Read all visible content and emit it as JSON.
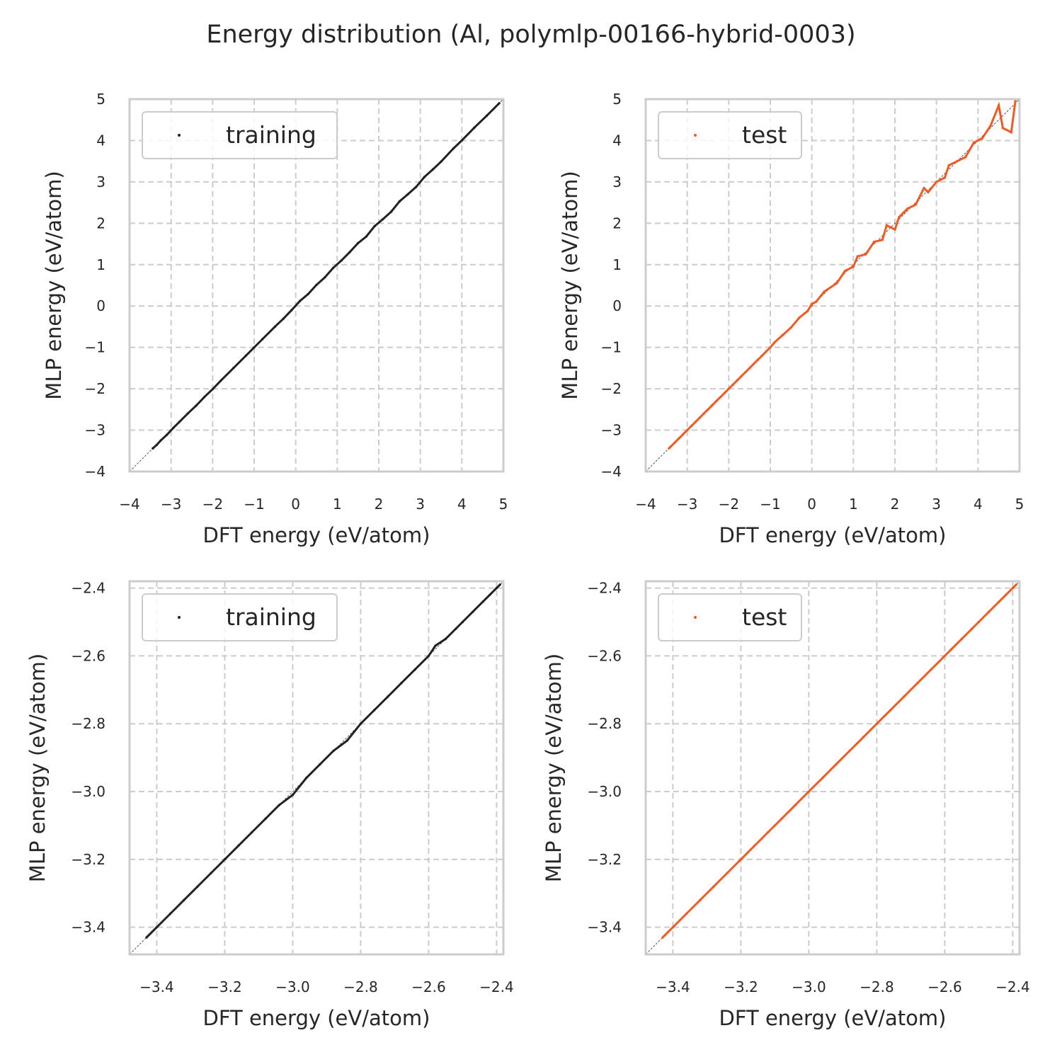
{
  "figure": {
    "title": "Energy distribution (Al, polymlp-00166-hybrid-0003)"
  },
  "colors": {
    "training": "#222222",
    "test": "#f15a22",
    "grid": "#cccccc",
    "frame": "#cccccc",
    "diagonal": "#555555"
  },
  "chart_data": [
    {
      "type": "scatter",
      "panel": "top-left",
      "xlabel": "DFT energy (eV/atom)",
      "ylabel": "MLP energy (eV/atom)",
      "xlim": [
        -4,
        5
      ],
      "ylim": [
        -4,
        5
      ],
      "xticks": [
        -4,
        -3,
        -2,
        -1,
        0,
        1,
        2,
        3,
        4,
        5
      ],
      "yticks": [
        -4,
        -3,
        -2,
        -1,
        0,
        1,
        2,
        3,
        4,
        5
      ],
      "xtick_labels": [
        "−4",
        "−3",
        "−2",
        "−1",
        "0",
        "1",
        "2",
        "3",
        "4",
        "5"
      ],
      "ytick_labels": [
        "−4",
        "−3",
        "−2",
        "−1",
        "0",
        "1",
        "2",
        "3",
        "4",
        "5"
      ],
      "grid": true,
      "legend_position": "upper-left",
      "diagonal": true,
      "series": [
        {
          "name": "training",
          "color": "#222222",
          "x": [
            -3.44,
            -3.35,
            -3.25,
            -3.1,
            -2.95,
            -2.8,
            -2.6,
            -2.4,
            -2.2,
            -2.0,
            -1.8,
            -1.5,
            -1.2,
            -1.0,
            -0.8,
            -0.5,
            -0.3,
            -0.1,
            0.1,
            0.3,
            0.5,
            0.7,
            0.9,
            1.1,
            1.3,
            1.5,
            1.7,
            1.9,
            2.1,
            2.3,
            2.5,
            2.7,
            2.9,
            3.1,
            3.3,
            3.5,
            3.8,
            4.0,
            4.3,
            4.6,
            4.9
          ],
          "y": [
            -3.44,
            -3.36,
            -3.25,
            -3.11,
            -2.95,
            -2.8,
            -2.6,
            -2.41,
            -2.2,
            -2.01,
            -1.8,
            -1.5,
            -1.2,
            -1.0,
            -0.8,
            -0.5,
            -0.31,
            -0.1,
            0.12,
            0.29,
            0.51,
            0.69,
            0.92,
            1.1,
            1.3,
            1.52,
            1.68,
            1.93,
            2.1,
            2.28,
            2.53,
            2.7,
            2.88,
            3.12,
            3.3,
            3.49,
            3.81,
            4.0,
            4.31,
            4.6,
            4.9
          ]
        }
      ]
    },
    {
      "type": "scatter",
      "panel": "top-right",
      "xlabel": "DFT energy (eV/atom)",
      "ylabel": "MLP energy (eV/atom)",
      "xlim": [
        -4,
        5
      ],
      "ylim": [
        -4,
        5
      ],
      "xticks": [
        -4,
        -3,
        -2,
        -1,
        0,
        1,
        2,
        3,
        4,
        5
      ],
      "yticks": [
        -4,
        -3,
        -2,
        -1,
        0,
        1,
        2,
        3,
        4,
        5
      ],
      "xtick_labels": [
        "−4",
        "−3",
        "−2",
        "−1",
        "0",
        "1",
        "2",
        "3",
        "4",
        "5"
      ],
      "ytick_labels": [
        "−4",
        "−3",
        "−2",
        "−1",
        "0",
        "1",
        "2",
        "3",
        "4",
        "5"
      ],
      "grid": true,
      "legend_position": "upper-left",
      "diagonal": true,
      "series": [
        {
          "name": "test",
          "color": "#f15a22",
          "x": [
            -3.44,
            -3.4,
            -3.3,
            -3.2,
            -3.1,
            -3.0,
            -2.9,
            -2.8,
            -2.7,
            -2.6,
            -2.5,
            -2.4,
            -2.3,
            -2.2,
            -2.1,
            -2.0,
            -1.9,
            -1.8,
            -1.7,
            -1.5,
            -1.4,
            -1.3,
            -1.2,
            -1.1,
            -1.0,
            -0.9,
            -0.7,
            -0.5,
            -0.3,
            -0.1,
            0.0,
            0.1,
            0.3,
            0.6,
            0.8,
            1.0,
            1.1,
            1.3,
            1.5,
            1.7,
            1.8,
            2.0,
            2.1,
            2.3,
            2.5,
            2.7,
            2.8,
            3.0,
            3.2,
            3.3,
            3.5,
            3.7,
            3.9,
            4.1,
            4.3,
            4.5,
            4.6,
            4.8,
            4.9
          ],
          "y": [
            -3.44,
            -3.4,
            -3.3,
            -3.2,
            -3.1,
            -3.0,
            -2.9,
            -2.8,
            -2.7,
            -2.6,
            -2.5,
            -2.4,
            -2.3,
            -2.2,
            -2.1,
            -2.0,
            -1.9,
            -1.8,
            -1.7,
            -1.5,
            -1.4,
            -1.3,
            -1.2,
            -1.1,
            -1.0,
            -0.88,
            -0.7,
            -0.52,
            -0.28,
            -0.12,
            0.05,
            0.1,
            0.35,
            0.55,
            0.85,
            0.95,
            1.2,
            1.25,
            1.55,
            1.6,
            1.95,
            1.85,
            2.15,
            2.35,
            2.45,
            2.85,
            2.75,
            3.0,
            3.1,
            3.4,
            3.5,
            3.6,
            3.95,
            4.05,
            4.35,
            4.85,
            4.3,
            4.2,
            4.95
          ]
        }
      ]
    },
    {
      "type": "scatter",
      "panel": "bottom-left",
      "xlabel": "DFT energy (eV/atom)",
      "ylabel": "MLP energy (eV/atom)",
      "xlim": [
        -3.48,
        -2.38
      ],
      "ylim": [
        -3.48,
        -2.38
      ],
      "xticks": [
        -3.4,
        -3.2,
        -3.0,
        -2.8,
        -2.6,
        -2.4
      ],
      "yticks": [
        -3.4,
        -3.2,
        -3.0,
        -2.8,
        -2.6,
        -2.4
      ],
      "xtick_labels": [
        "−3.4",
        "−3.2",
        "−3.0",
        "−2.8",
        "−2.6",
        "−2.4"
      ],
      "ytick_labels": [
        "−3.4",
        "−3.2",
        "−3.0",
        "−2.8",
        "−2.6",
        "−2.4"
      ],
      "grid": true,
      "legend_position": "upper-left",
      "diagonal": true,
      "series": [
        {
          "name": "training",
          "color": "#222222",
          "x": [
            -3.43,
            -3.4,
            -3.36,
            -3.32,
            -3.28,
            -3.24,
            -3.2,
            -3.16,
            -3.12,
            -3.08,
            -3.04,
            -3.0,
            -2.96,
            -2.92,
            -2.88,
            -2.84,
            -2.8,
            -2.76,
            -2.72,
            -2.68,
            -2.64,
            -2.6,
            -2.58,
            -2.55,
            -2.52,
            -2.5,
            -2.47,
            -2.44,
            -2.42,
            -2.4,
            -2.39
          ],
          "y": [
            -3.43,
            -3.4,
            -3.36,
            -3.32,
            -3.28,
            -3.24,
            -3.2,
            -3.16,
            -3.12,
            -3.08,
            -3.04,
            -3.01,
            -2.96,
            -2.92,
            -2.88,
            -2.85,
            -2.8,
            -2.76,
            -2.72,
            -2.68,
            -2.64,
            -2.6,
            -2.57,
            -2.55,
            -2.52,
            -2.5,
            -2.47,
            -2.44,
            -2.42,
            -2.4,
            -2.39
          ]
        }
      ]
    },
    {
      "type": "scatter",
      "panel": "bottom-right",
      "xlabel": "DFT energy (eV/atom)",
      "ylabel": "MLP energy (eV/atom)",
      "xlim": [
        -3.48,
        -2.38
      ],
      "ylim": [
        -3.48,
        -2.38
      ],
      "xticks": [
        -3.4,
        -3.2,
        -3.0,
        -2.8,
        -2.6,
        -2.4
      ],
      "yticks": [
        -3.4,
        -3.2,
        -3.0,
        -2.8,
        -2.6,
        -2.4
      ],
      "xtick_labels": [
        "−3.4",
        "−3.2",
        "−3.0",
        "−2.8",
        "−2.6",
        "−2.4"
      ],
      "ytick_labels": [
        "−3.4",
        "−3.2",
        "−3.0",
        "−2.8",
        "−2.6",
        "−2.4"
      ],
      "grid": true,
      "legend_position": "upper-left",
      "diagonal": true,
      "series": [
        {
          "name": "test",
          "color": "#f15a22",
          "x": [
            -3.43,
            -3.4,
            -3.36,
            -3.32,
            -3.28,
            -3.24,
            -3.2,
            -3.16,
            -3.12,
            -3.08,
            -3.04,
            -3.0,
            -2.96,
            -2.92,
            -2.88,
            -2.84,
            -2.8,
            -2.76,
            -2.72,
            -2.68,
            -2.64,
            -2.6,
            -2.58,
            -2.55,
            -2.52,
            -2.5,
            -2.47,
            -2.44,
            -2.42,
            -2.4,
            -2.39
          ],
          "y": [
            -3.43,
            -3.4,
            -3.36,
            -3.32,
            -3.28,
            -3.24,
            -3.2,
            -3.16,
            -3.12,
            -3.08,
            -3.04,
            -3.0,
            -2.96,
            -2.92,
            -2.88,
            -2.84,
            -2.8,
            -2.76,
            -2.72,
            -2.68,
            -2.64,
            -2.6,
            -2.58,
            -2.55,
            -2.52,
            -2.5,
            -2.47,
            -2.44,
            -2.42,
            -2.4,
            -2.39
          ]
        }
      ]
    }
  ]
}
